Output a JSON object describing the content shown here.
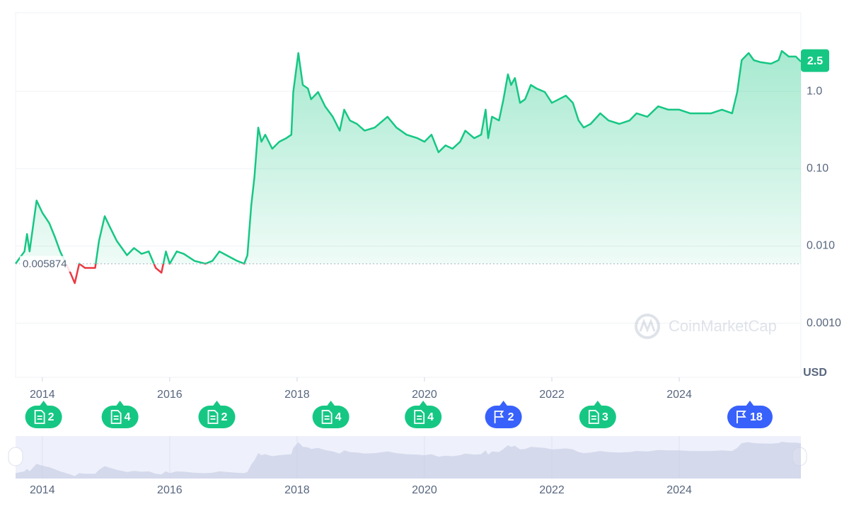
{
  "chart_data": {
    "type": "line",
    "scale": "log",
    "y_unit": "USD",
    "watermark": "CoinMarketCap",
    "current_value": 2.5,
    "baseline": 0.005874,
    "xlim": [
      2013.58,
      2025.91
    ],
    "xticks": [
      2014,
      2016,
      2018,
      2020,
      2022,
      2024
    ],
    "ylim": [
      0.0002,
      10.4
    ],
    "yticks": [
      {
        "value": 0.001,
        "label": "0.0010"
      },
      {
        "value": 0.01,
        "label": "0.010"
      },
      {
        "value": 0.1,
        "label": "0.10"
      },
      {
        "value": 1,
        "label": "1.0"
      }
    ],
    "grid": true,
    "x": [
      2013.58,
      2013.72,
      2013.76,
      2013.8,
      2013.91,
      2014.0,
      2014.11,
      2014.2,
      2014.28,
      2014.44,
      2014.51,
      2014.58,
      2014.67,
      2014.83,
      2014.89,
      2014.98,
      2015.06,
      2015.17,
      2015.33,
      2015.44,
      2015.56,
      2015.67,
      2015.78,
      2015.87,
      2015.94,
      2016.0,
      2016.11,
      2016.22,
      2016.39,
      2016.56,
      2016.67,
      2016.78,
      2016.89,
      2017.06,
      2017.17,
      2017.22,
      2017.28,
      2017.33,
      2017.39,
      2017.44,
      2017.5,
      2017.61,
      2017.72,
      2017.83,
      2017.91,
      2017.94,
      2018.02,
      2018.09,
      2018.17,
      2018.22,
      2018.33,
      2018.44,
      2018.56,
      2018.67,
      2018.74,
      2018.83,
      2018.94,
      2019.06,
      2019.22,
      2019.42,
      2019.56,
      2019.72,
      2019.89,
      2020.0,
      2020.11,
      2020.22,
      2020.33,
      2020.44,
      2020.56,
      2020.64,
      2020.78,
      2020.89,
      2020.96,
      2021.0,
      2021.06,
      2021.17,
      2021.24,
      2021.31,
      2021.36,
      2021.42,
      2021.5,
      2021.58,
      2021.67,
      2021.76,
      2021.89,
      2022.0,
      2022.11,
      2022.22,
      2022.33,
      2022.42,
      2022.5,
      2022.61,
      2022.76,
      2022.89,
      2023.06,
      2023.22,
      2023.33,
      2023.5,
      2023.67,
      2023.83,
      2024.0,
      2024.17,
      2024.33,
      2024.5,
      2024.67,
      2024.83,
      2024.91,
      2024.98,
      2025.09,
      2025.17,
      2025.28,
      2025.44,
      2025.56,
      2025.61,
      2025.72,
      2025.83,
      2025.91
    ],
    "series": [
      {
        "color": "#16c784",
        "down_color": "#ea3943",
        "values": [
          0.0059,
          0.0085,
          0.0143,
          0.0085,
          0.0387,
          0.027,
          0.0197,
          0.0129,
          0.0085,
          0.0045,
          0.0033,
          0.0059,
          0.0052,
          0.0052,
          0.0116,
          0.0243,
          0.0177,
          0.0116,
          0.0076,
          0.0094,
          0.0079,
          0.0085,
          0.0052,
          0.0045,
          0.0085,
          0.0059,
          0.0085,
          0.0079,
          0.0064,
          0.0059,
          0.0064,
          0.0085,
          0.0076,
          0.0064,
          0.0059,
          0.0076,
          0.0333,
          0.0776,
          0.34,
          0.223,
          0.275,
          0.181,
          0.223,
          0.248,
          0.275,
          0.98,
          3.13,
          1.21,
          1.09,
          0.79,
          0.98,
          0.64,
          0.47,
          0.31,
          0.58,
          0.42,
          0.38,
          0.31,
          0.34,
          0.47,
          0.34,
          0.275,
          0.248,
          0.223,
          0.275,
          0.163,
          0.2,
          0.181,
          0.223,
          0.31,
          0.248,
          0.275,
          0.58,
          0.248,
          0.47,
          0.42,
          0.79,
          1.66,
          1.21,
          1.49,
          0.71,
          0.79,
          1.21,
          1.09,
          0.98,
          0.71,
          0.79,
          0.88,
          0.71,
          0.42,
          0.34,
          0.38,
          0.52,
          0.42,
          0.38,
          0.42,
          0.52,
          0.47,
          0.64,
          0.58,
          0.58,
          0.52,
          0.52,
          0.52,
          0.58,
          0.52,
          0.98,
          2.53,
          3.13,
          2.53,
          2.38,
          2.28,
          2.53,
          3.33,
          2.82,
          2.82,
          2.43
        ]
      }
    ],
    "events": [
      {
        "x": 2014.02,
        "count": 2,
        "icon": "note"
      },
      {
        "x": 2015.22,
        "count": 4,
        "icon": "note"
      },
      {
        "x": 2016.74,
        "count": 2,
        "icon": "note"
      },
      {
        "x": 2018.53,
        "count": 4,
        "icon": "note"
      },
      {
        "x": 2019.98,
        "count": 4,
        "icon": "note"
      },
      {
        "x": 2021.24,
        "count": 2,
        "icon": "flag"
      },
      {
        "x": 2022.72,
        "count": 3,
        "icon": "note"
      },
      {
        "x": 2025.11,
        "count": 18,
        "icon": "flag"
      }
    ]
  }
}
